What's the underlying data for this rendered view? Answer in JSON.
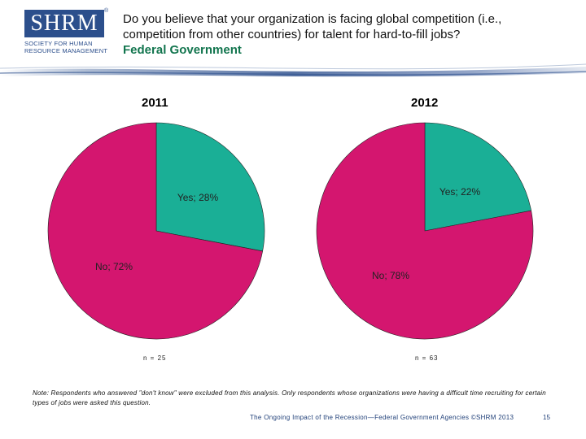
{
  "header": {
    "logo_main": "SHRM",
    "logo_sub": "SOCIETY FOR HUMAN RESOURCE MANAGEMENT",
    "logo_reg": "®",
    "question": "Do you believe that your organization is facing global competition (i.e., competition from other countries) for talent for hard-to-fill jobs?",
    "subtitle": "Federal Government"
  },
  "colors": {
    "yes": "#1aaf96",
    "no": "#d4166f",
    "logo": "#2c4f8c",
    "subtitle": "#12754e"
  },
  "chart_data": [
    {
      "type": "pie",
      "title": "2011",
      "categories": [
        "Yes",
        "No"
      ],
      "values": [
        28,
        72
      ],
      "data_labels": [
        "Yes; 28%",
        "No; 72%"
      ],
      "n_label": "n = 25"
    },
    {
      "type": "pie",
      "title": "2012",
      "categories": [
        "Yes",
        "No"
      ],
      "values": [
        22,
        78
      ],
      "data_labels": [
        "Yes; 22%",
        "No; 78%"
      ],
      "n_label": "n = 63"
    }
  ],
  "note": "Note: Respondents who answered \"don't know\" were excluded from this analysis. Only respondents whose organizations were having a difficult time recruiting for certain types of jobs were asked this question.",
  "footer": {
    "source": "The Ongoing Impact of the Recession—Federal Government Agencies ©SHRM 2013",
    "page": "15"
  }
}
